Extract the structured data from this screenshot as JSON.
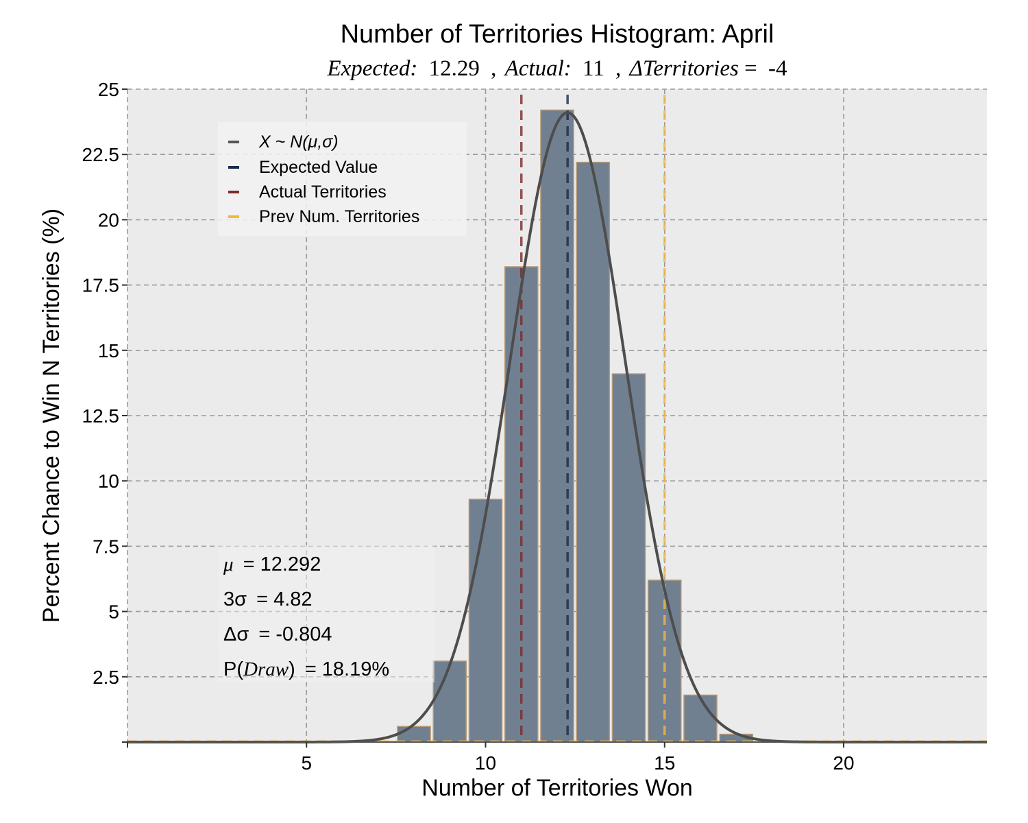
{
  "chart_data": {
    "type": "bar",
    "title": "Number of Territories Histogram: April",
    "subtitle": {
      "expected_label": "Expected:",
      "expected_value": "12.29",
      "actual_label": "Actual:",
      "actual_value": "11",
      "delta_label": "ΔTerritories",
      "delta_value": "-4"
    },
    "xlabel": "Number of Territories Won",
    "ylabel": "Percent Chance to Win N Territories (%)",
    "xlim": [
      0,
      24
    ],
    "ylim": [
      0,
      25
    ],
    "x_ticks": [
      5,
      10,
      15,
      20
    ],
    "y_ticks": [
      2.5,
      5,
      7.5,
      10,
      12.5,
      15,
      17.5,
      20,
      22.5,
      25
    ],
    "y_tick_labels": [
      "2.5",
      "5",
      "7.5",
      "10",
      "12.5",
      "15",
      "17.5",
      "20",
      "22.5",
      "25"
    ],
    "grid": true,
    "bars": {
      "x": [
        7,
        8,
        9,
        10,
        11,
        12,
        13,
        14,
        15,
        16,
        17
      ],
      "values": [
        0.02,
        0.6,
        3.1,
        9.3,
        18.2,
        24.2,
        22.2,
        14.1,
        6.2,
        1.8,
        0.3
      ],
      "color": "#708090",
      "edge_color": "#b89a7a"
    },
    "normal_curve": {
      "mu": 12.292,
      "sigma": 1.607,
      "peak": 24.1,
      "color": "#4d4d4d"
    },
    "vlines": [
      {
        "name": "Expected Value",
        "x": 12.29,
        "color": "#1b2a4a"
      },
      {
        "name": "Actual Territories",
        "x": 11,
        "color": "#7a2a2a"
      },
      {
        "name": "Prev Num. Territories",
        "x": 15,
        "color": "#f5b83d"
      }
    ],
    "legend": {
      "placement": "upper-left",
      "entries": [
        {
          "label": "X ~ N(μ,σ)",
          "color": "#555555",
          "italic": true
        },
        {
          "label": "Expected Value",
          "color": "#1b2a4a"
        },
        {
          "label": "Actual Territories",
          "color": "#7a2a2a"
        },
        {
          "label": "Prev Num. Territories",
          "color": "#f5b83d"
        }
      ]
    },
    "stats": {
      "placement": "lower-left",
      "mu_symbol": "μ",
      "mu_value": "= 12.292",
      "three_sigma_symbol": "3σ",
      "three_sigma_value": "= 4.82",
      "delta_sigma_symbol": "Δσ",
      "delta_sigma_value": "= -0.804",
      "p_draw_prefix": "P(",
      "p_draw_symbol": "Draw",
      "p_draw_suffix": ")",
      "p_draw_value": "= 18.19%"
    },
    "plot_background": "#ebebeb"
  }
}
